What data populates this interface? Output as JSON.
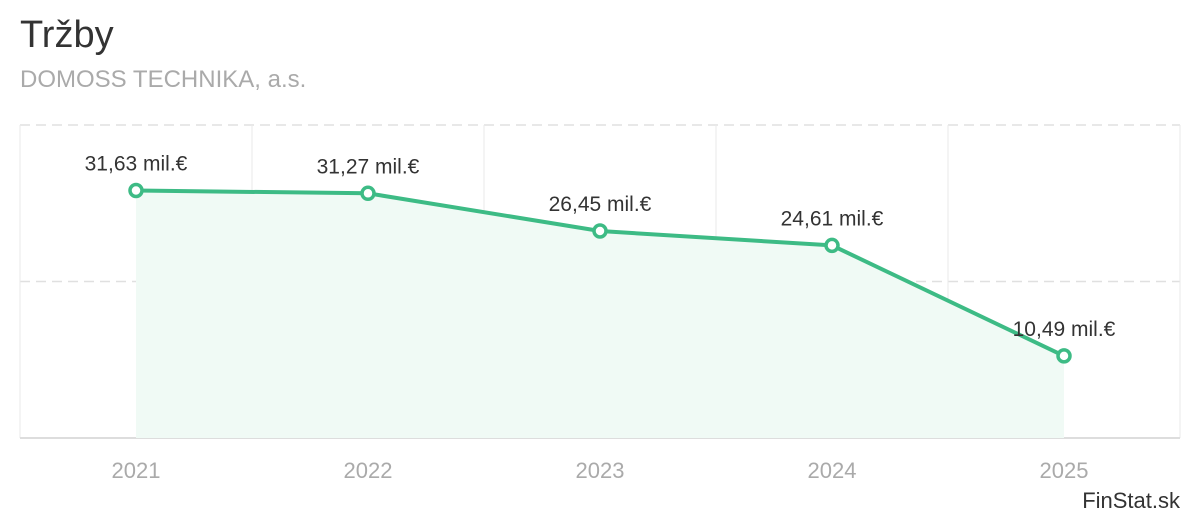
{
  "header": {
    "title": "Tržby",
    "subtitle": "DOMOSS TECHNIKA, a.s."
  },
  "footer": {
    "source": "FinStat.sk"
  },
  "colors": {
    "line": "#3dbb85",
    "fill": "#f0faf5",
    "grid": "#e0e0e0",
    "axis": "#dddddd"
  },
  "chart_data": {
    "type": "area",
    "categories": [
      "2021",
      "2022",
      "2023",
      "2024",
      "2025"
    ],
    "series": [
      {
        "values": [
          31.63,
          31.27,
          26.45,
          24.61,
          10.49
        ],
        "labels": [
          "31,63 mil.€",
          "31,27 mil.€",
          "26,45 mil.€",
          "24,61 mil.€",
          "10,49 mil.€"
        ]
      }
    ],
    "title": "Tržby",
    "subtitle": "DOMOSS TECHNIKA, a.s.",
    "xlabel": "",
    "ylabel": "",
    "ylim": [
      0,
      40
    ],
    "grid": true,
    "legend": "none"
  }
}
